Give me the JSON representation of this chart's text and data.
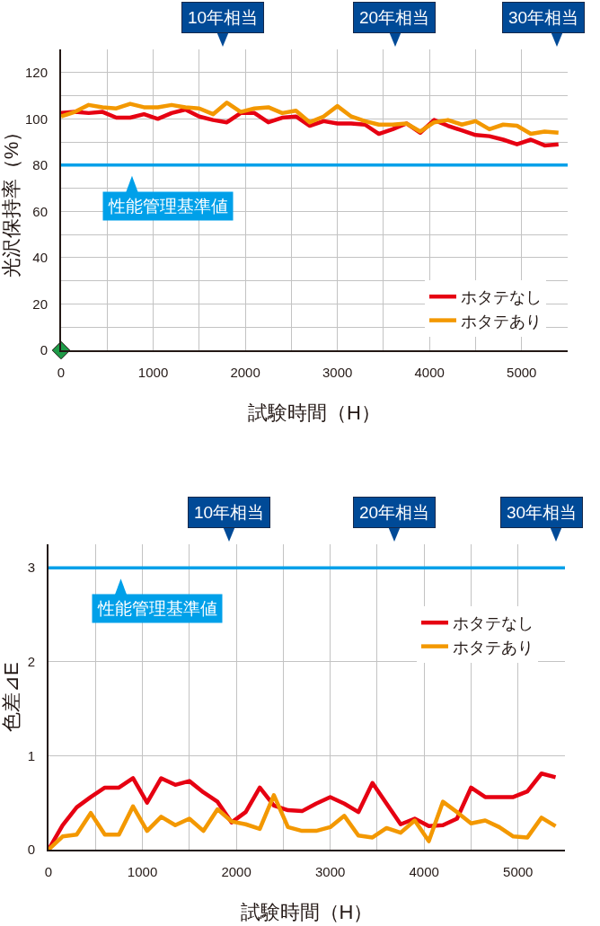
{
  "chart_data": [
    {
      "type": "line",
      "xlabel": "試験時間（H）",
      "ylabel": "光沢保持率（%）",
      "x": [
        0,
        150,
        300,
        450,
        600,
        750,
        900,
        1050,
        1200,
        1350,
        1500,
        1650,
        1800,
        1950,
        2100,
        2250,
        2400,
        2550,
        2700,
        2850,
        3000,
        3150,
        3300,
        3450,
        3600,
        3750,
        3900,
        4050,
        4200,
        4350,
        4500,
        4650,
        4800,
        4950,
        5100,
        5250,
        5400
      ],
      "xlim": [
        0,
        5500
      ],
      "xticks": [
        0,
        {
          "value": 500,
          "label": null
        },
        1000,
        {
          "value": 1500,
          "label": null
        },
        2000,
        {
          "value": 2500,
          "label": null
        },
        3000,
        {
          "value": 3500,
          "label": null
        },
        4000,
        {
          "value": 4500,
          "label": null
        },
        5000
      ],
      "ylim": [
        0,
        130
      ],
      "yticks": [
        0,
        {
          "value": 10,
          "label": null
        },
        20,
        {
          "value": 30,
          "label": null
        },
        40,
        {
          "value": 50,
          "label": null
        },
        60,
        {
          "value": 70,
          "label": null
        },
        80,
        {
          "value": 90,
          "label": null
        },
        100,
        {
          "value": 110,
          "label": null
        },
        120
      ],
      "grid": true,
      "legend": "bottom right",
      "line_style": "solid",
      "series": [
        {
          "name": "ホタテなし",
          "color": "#e60012",
          "values": [
            102.5,
            103,
            102.5,
            103,
            100.5,
            100.5,
            102,
            100,
            102.5,
            104,
            101,
            99.5,
            98.5,
            102.5,
            102.5,
            98.5,
            100.5,
            101,
            97,
            99,
            98,
            98,
            97.5,
            93.5,
            95.5,
            98,
            94,
            99.5,
            97,
            95,
            93,
            92.5,
            91,
            89,
            91,
            88.5,
            89
          ]
        },
        {
          "name": "ホタテあり",
          "color": "#f39800",
          "values": [
            101,
            103,
            106,
            105,
            104.5,
            106.5,
            105,
            105,
            106,
            105,
            104.5,
            102,
            107,
            103,
            104.5,
            105,
            102.5,
            103.5,
            98.5,
            101,
            105.5,
            101,
            99,
            97.5,
            97.5,
            98,
            94.5,
            98.5,
            99.5,
            97.5,
            99,
            95.5,
            97.5,
            97,
            93.5,
            94.5,
            94
          ]
        },
        {
          "type": "scatter",
          "color": "#1e9b48",
          "marker": "diamond",
          "x": [
            0
          ],
          "values": [
            0
          ]
        }
      ],
      "ref_lines": [
        {
          "axis": "y",
          "value": 80,
          "label": "性能管理基準値",
          "color": "#00a0e9"
        }
      ],
      "annotations": [
        "10年相当",
        "20年相当",
        "30年相当"
      ]
    },
    {
      "type": "line",
      "xlabel": "試験時間（H）",
      "ylabel": "色差⊿E",
      "x": [
        0,
        150,
        300,
        450,
        600,
        750,
        900,
        1050,
        1200,
        1350,
        1500,
        1650,
        1800,
        1950,
        2100,
        2250,
        2400,
        2550,
        2700,
        2850,
        3000,
        3150,
        3300,
        3450,
        3600,
        3750,
        3900,
        4050,
        4200,
        4350,
        4500,
        4650,
        4800,
        4950,
        5100,
        5250,
        5400
      ],
      "xlim": [
        0,
        5500
      ],
      "xticks": [
        0,
        {
          "value": 500,
          "label": null
        },
        1000,
        {
          "value": 1500,
          "label": null
        },
        2000,
        {
          "value": 2500,
          "label": null
        },
        3000,
        {
          "value": 3500,
          "label": null
        },
        4000,
        {
          "value": 4500,
          "label": null
        },
        5000
      ],
      "ylim": [
        0,
        3.25
      ],
      "yticks": [
        0,
        1,
        2,
        3
      ],
      "grid": true,
      "legend": "top right",
      "line_style": "solid",
      "series": [
        {
          "name": "ホタテなし",
          "color": "#e60012",
          "values": [
            0,
            0.26,
            0.45,
            0.56,
            0.66,
            0.66,
            0.76,
            0.5,
            0.76,
            0.69,
            0.73,
            0.61,
            0.51,
            0.29,
            0.4,
            0.66,
            0.47,
            0.42,
            0.41,
            0.49,
            0.56,
            0.49,
            0.4,
            0.71,
            0.49,
            0.27,
            0.33,
            0.25,
            0.26,
            0.33,
            0.66,
            0.56,
            0.56,
            0.56,
            0.62,
            0.81,
            0.77
          ]
        },
        {
          "name": "ホタテあり",
          "color": "#f39800",
          "values": [
            0,
            0.14,
            0.16,
            0.39,
            0.16,
            0.16,
            0.46,
            0.2,
            0.35,
            0.26,
            0.33,
            0.2,
            0.43,
            0.3,
            0.27,
            0.22,
            0.58,
            0.24,
            0.2,
            0.2,
            0.24,
            0.36,
            0.15,
            0.13,
            0.23,
            0.18,
            0.31,
            0.09,
            0.51,
            0.4,
            0.28,
            0.31,
            0.24,
            0.14,
            0.13,
            0.34,
            0.25
          ]
        }
      ],
      "ref_lines": [
        {
          "axis": "y",
          "value": 3,
          "label": "性能管理基準値",
          "color": "#00a0e9"
        }
      ],
      "annotations": [
        "10年相当",
        "20年相当",
        "30年相当"
      ]
    }
  ]
}
